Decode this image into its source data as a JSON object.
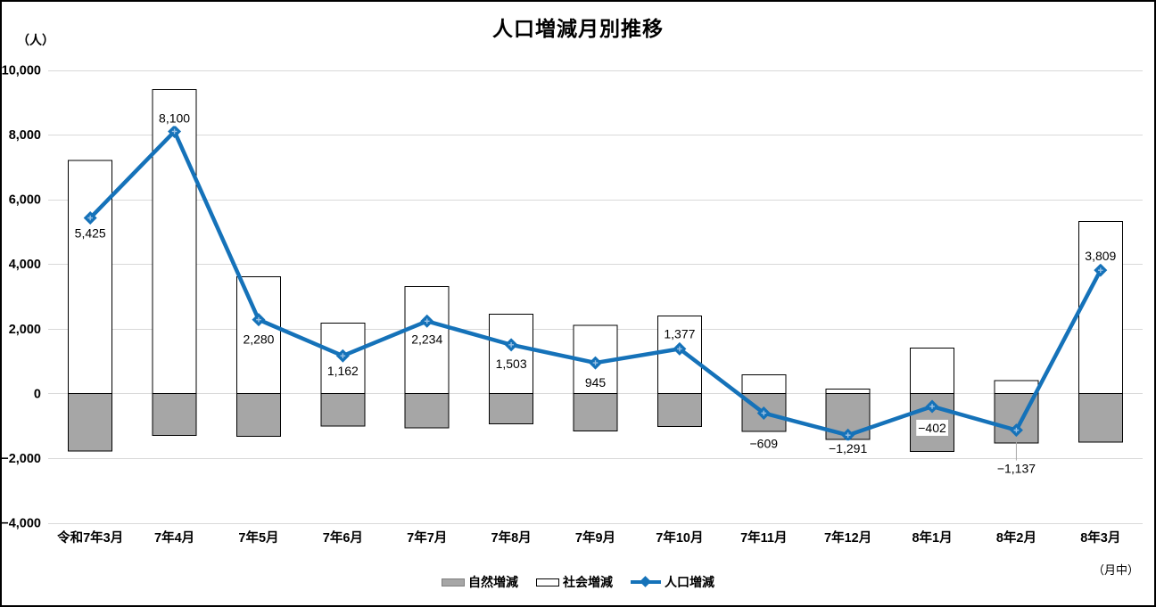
{
  "title": "人口増減月別推移",
  "y_axis": {
    "unit_label": "（人）",
    "min": -4000,
    "max": 10000,
    "step": 2000,
    "ticks": [
      {
        "value": 10000,
        "label": "10,000"
      },
      {
        "value": 8000,
        "label": "8,000"
      },
      {
        "value": 6000,
        "label": "6,000"
      },
      {
        "value": 4000,
        "label": "4,000"
      },
      {
        "value": 2000,
        "label": "2,000"
      },
      {
        "value": 0,
        "label": "0"
      },
      {
        "value": -2000,
        "label": "−2,000"
      },
      {
        "value": -4000,
        "label": "−4,000"
      }
    ]
  },
  "x_axis": {
    "note": "（月中）"
  },
  "legend": {
    "items": [
      {
        "label": "自然増減",
        "swatch": "bar-natural"
      },
      {
        "label": "社会増減",
        "swatch": "bar-social"
      },
      {
        "label": "人口増減",
        "swatch": "line"
      }
    ]
  },
  "colors": {
    "line": "#1572B9",
    "marker_inner": "#9DC3E6",
    "bar_natural_fill": "#A6A6A6",
    "bar_social_fill": "#FFFFFF",
    "bar_border": "#000000",
    "gridline": "#D9D9D9",
    "leader_line": "#A6A6A6",
    "natural_swatch_border": "#7F7F7F",
    "text": "#000000",
    "label_bg": "#FFFFFF"
  },
  "chart_data": {
    "type": "bar+line",
    "categories": [
      "令和7年3月",
      "7年4月",
      "7年5月",
      "7年6月",
      "7年7月",
      "7年8月",
      "7年9月",
      "7年10月",
      "7年11月",
      "7年12月",
      "8年1月",
      "8年2月",
      "8年3月"
    ],
    "series": [
      {
        "name": "自然増減",
        "type": "bar",
        "values": [
          -1775,
          -1300,
          -1320,
          -1008,
          -1066,
          -947,
          -1155,
          -1023,
          -1179,
          -1421,
          -1802,
          -1527,
          -1511
        ]
      },
      {
        "name": "社会増減",
        "type": "bar",
        "values": [
          7200,
          9400,
          3600,
          2170,
          3300,
          2450,
          2100,
          2400,
          570,
          130,
          1400,
          390,
          5320
        ]
      },
      {
        "name": "人口増減",
        "type": "line",
        "values": [
          5425,
          8100,
          2280,
          1162,
          2234,
          1503,
          945,
          1377,
          -609,
          -1291,
          -402,
          -1137,
          3809
        ],
        "data_labels": [
          "5,425",
          "8,100",
          "2,280",
          "1,162",
          "2,234",
          "1,503",
          "945",
          "1,377",
          "−609",
          "−1,291",
          "−402",
          "−1,137",
          "3,809"
        ],
        "label_center_dy": [
          17,
          -15,
          22,
          17,
          20,
          21,
          22,
          -17,
          34,
          15,
          24,
          43,
          -16
        ],
        "leader_index": 11
      }
    ],
    "ylim": [
      -4000,
      10000
    ],
    "grid": true,
    "legend_position": "bottom"
  }
}
